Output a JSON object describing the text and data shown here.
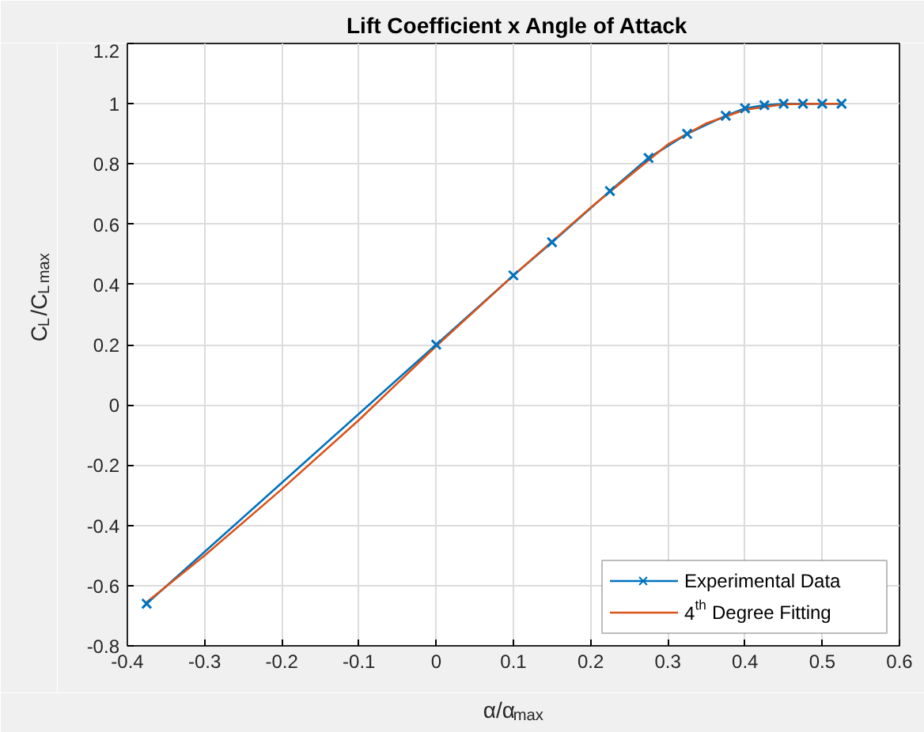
{
  "chart_data": {
    "type": "line",
    "title": "Lift Coefficient   x Angle of Attack",
    "xlabel": "α/α$_{max}$",
    "ylabel": "C$_{L}$/C$_{L}$$_{max}$",
    "series": [
      {
        "name": "Experimental Data",
        "color": "#0072bd",
        "marker": "cross",
        "x": [
          -0.375,
          0,
          0.1,
          0.15,
          0.225,
          0.275,
          0.325,
          0.375,
          0.4,
          0.425,
          0.45,
          0.475,
          0.5,
          0.525
        ],
        "values": [
          -0.66,
          0.2,
          0.43,
          0.54,
          0.71,
          0.82,
          0.9,
          0.96,
          0.985,
          0.995,
          1.0,
          1.0,
          1.0,
          1.0
        ]
      },
      {
        "name": "4$^{th}$ Degree Fitting",
        "color": "#d95319",
        "marker": "none",
        "x": [
          -0.375,
          -0.3,
          -0.2,
          -0.1,
          0,
          0.1,
          0.2,
          0.3,
          0.35,
          0.4,
          0.45,
          0.5,
          0.525
        ],
        "values": [
          -0.655,
          -0.5,
          -0.28,
          -0.05,
          0.195,
          0.43,
          0.655,
          0.865,
          0.935,
          0.98,
          0.998,
          1.0,
          1.0
        ]
      }
    ],
    "xlim": [
      -0.4,
      0.6
    ],
    "xticks": [
      -0.4,
      -0.3,
      -0.2,
      -0.1,
      0,
      0.1,
      0.2,
      0.3,
      0.4,
      0.5,
      0.6
    ],
    "ylim": [
      -0.8,
      1.2
    ],
    "yticks": [
      -0.8,
      -0.6,
      -0.4,
      -0.2,
      0,
      0.2,
      0.4,
      0.6,
      0.8,
      1,
      1.2
    ],
    "grid": true,
    "legend": "bottom right",
    "line_style": "solid"
  }
}
